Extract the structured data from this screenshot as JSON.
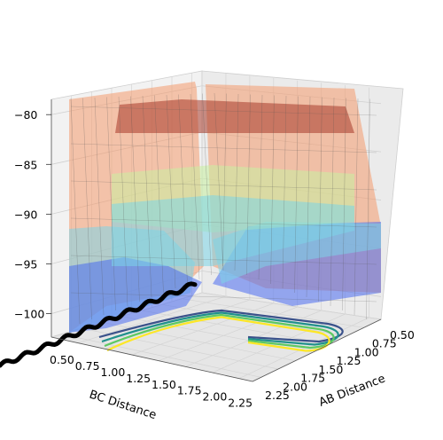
{
  "chart_data": {
    "type": "surface3d",
    "title": "",
    "xlabel": "BC Distance",
    "ylabel": "AB Distance",
    "zlabel": "",
    "xlim": [
      0.5,
      2.3
    ],
    "ylim": [
      0.5,
      2.3
    ],
    "zlim": [
      -102,
      -79
    ],
    "xticks": [
      "0.50",
      "0.75",
      "1.00",
      "1.25",
      "1.50",
      "1.75",
      "2.00",
      "2.25"
    ],
    "yticks": [
      "0.50",
      "0.75",
      "1.00",
      "1.25",
      "1.50",
      "1.75",
      "2.00",
      "2.25"
    ],
    "zticks": [
      "−80",
      "−85",
      "−90",
      "−95",
      "−100"
    ],
    "surface_value_bands": [
      {
        "from": -102,
        "to": -95,
        "color": "#4a6cf0"
      },
      {
        "from": -95,
        "to": -90,
        "color": "#7cd6e8"
      },
      {
        "from": -90,
        "to": -85,
        "color": "#c9f0a0"
      },
      {
        "from": -85,
        "to": -81,
        "color": "#f49a6e"
      },
      {
        "from": -81,
        "to": -79,
        "color": "#a83a2a"
      }
    ],
    "floor_contour_colors": [
      "#3b528b",
      "#21918c",
      "#5ec962",
      "#fde725"
    ],
    "trajectory_color": "#000000",
    "grid": true
  }
}
